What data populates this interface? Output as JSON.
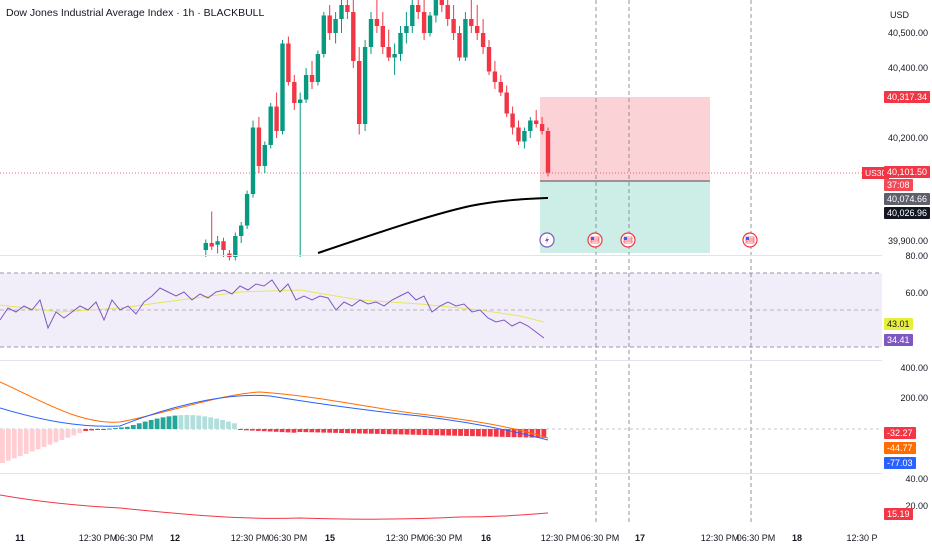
{
  "header": {
    "title": "Dow Jones Industrial Average Index · 1h · BLACKBULL",
    "currency": "USD"
  },
  "price_axis": {
    "labels": [
      "40,500.00",
      "40,400.00",
      "40,200.00",
      "39,900.00"
    ],
    "target_tag": "40,317.34",
    "symbol_tag": "US30",
    "current_price": "40,101.50",
    "countdown": "37:08",
    "ma_tag": "40,074.66",
    "stop_tag": "40,026.96"
  },
  "rsi_axis": {
    "labels": [
      "80.00",
      "60.00"
    ],
    "ma_value": "43.01",
    "rsi_value": "34.41"
  },
  "macd_axis": {
    "labels": [
      "400.00",
      "200.00"
    ],
    "hist_value": "-32.27",
    "signal_value": "-44.77",
    "macd_value": "-77.03"
  },
  "osc_axis": {
    "labels": [
      "40.00",
      "20.00"
    ],
    "value": "15.19"
  },
  "time_axis": {
    "labels": [
      {
        "text": "11",
        "day": true
      },
      {
        "text": "12:30 PM",
        "day": false
      },
      {
        "text": "06:30 PM",
        "day": false
      },
      {
        "text": "12",
        "day": true
      },
      {
        "text": "12:30 PM",
        "day": false
      },
      {
        "text": "06:30 PM",
        "day": false
      },
      {
        "text": "15",
        "day": true
      },
      {
        "text": "12:30 PM",
        "day": false
      },
      {
        "text": "06:30 PM",
        "day": false
      },
      {
        "text": "16",
        "day": true
      },
      {
        "text": "12:30 PM",
        "day": false
      },
      {
        "text": "06:30 PM",
        "day": false
      },
      {
        "text": "17",
        "day": true
      },
      {
        "text": "12:30 PM",
        "day": false
      },
      {
        "text": "06:30 PM",
        "day": false
      },
      {
        "text": "18",
        "day": true
      },
      {
        "text": "12:30 P",
        "day": false
      }
    ]
  },
  "colors": {
    "up": "#089981",
    "down": "#f23645",
    "rsi": "#7e57c2",
    "rsi_ma": "#e6e65a",
    "macd": "#2962ff",
    "signal": "#ff6d00",
    "osc": "#f23645",
    "ma": "#000000",
    "target_zone": "#fbd3d6",
    "stop_zone": "#cdeee6"
  },
  "icons": [
    "lightning-event-icon",
    "us-flag-event-icon",
    "us-flag-event-icon",
    "us-flag-event-icon"
  ]
}
